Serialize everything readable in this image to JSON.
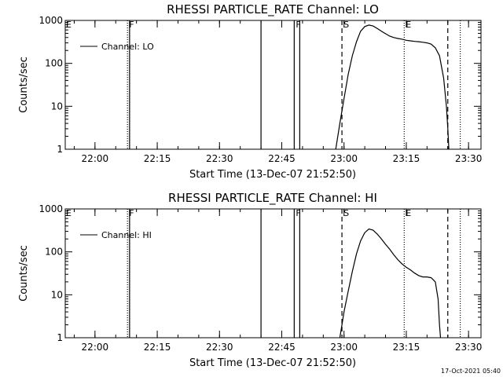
{
  "footer": {
    "timestamp": "17-Oct-2021 05:40"
  },
  "chart_data": [
    {
      "type": "line",
      "title": "RHESSI PARTICLE_RATE Channel: LO",
      "xlabel": "Start Time (13-Dec-07 21:52:50)",
      "ylabel": "Counts/sec",
      "y_scale": "log",
      "ylim": [
        1,
        1000
      ],
      "xlim": [
        "21:52:50",
        "23:33:00"
      ],
      "x_ticks": [
        "22:00",
        "22:15",
        "22:30",
        "22:45",
        "23:00",
        "23:15",
        "23:30"
      ],
      "y_ticks": [
        "1",
        "10",
        "100",
        "1000"
      ],
      "grid": false,
      "legend_position": "top-left",
      "series": [
        {
          "name": "Channel: LO",
          "x": [
            "22:58:00",
            "22:59:00",
            "23:00:00",
            "23:01:00",
            "23:02:00",
            "23:03:00",
            "23:04:00",
            "23:05:00",
            "23:06:00",
            "23:07:00",
            "23:08:00",
            "23:09:00",
            "23:10:00",
            "23:11:00",
            "23:12:00",
            "23:13:00",
            "23:14:00",
            "23:15:00",
            "23:16:00",
            "23:17:00",
            "23:18:00",
            "23:19:00",
            "23:20:00",
            "23:21:00",
            "23:22:00",
            "23:23:00",
            "23:24:00",
            "23:24:40",
            "23:25:00",
            "23:25:15"
          ],
          "y": [
            1,
            4,
            15,
            55,
            150,
            320,
            560,
            720,
            780,
            740,
            650,
            560,
            490,
            430,
            400,
            380,
            365,
            345,
            335,
            325,
            320,
            310,
            300,
            280,
            230,
            150,
            45,
            10,
            3,
            1
          ]
        }
      ],
      "vertical_markers": [
        {
          "time": "22:07:50",
          "style": "dotted",
          "label": "F"
        },
        {
          "time": "22:08:20",
          "style": "solid",
          "label": ""
        },
        {
          "time": "22:40:00",
          "style": "solid",
          "label": ""
        },
        {
          "time": "22:48:00",
          "style": "solid",
          "label": "F"
        },
        {
          "time": "22:49:20",
          "style": "solid",
          "label": ""
        },
        {
          "time": "22:59:30",
          "style": "dashed",
          "label": "S"
        },
        {
          "time": "23:14:30",
          "style": "dotted",
          "label": "E"
        },
        {
          "time": "23:25:00",
          "style": "dashed",
          "label": ""
        },
        {
          "time": "23:28:00",
          "style": "dotted",
          "label": ""
        }
      ],
      "left_edge_marker_label": "E"
    },
    {
      "type": "line",
      "title": "RHESSI PARTICLE_RATE Channel: HI",
      "xlabel": "Start Time (13-Dec-07 21:52:50)",
      "ylabel": "Counts/sec",
      "y_scale": "log",
      "ylim": [
        1,
        1000
      ],
      "xlim": [
        "21:52:50",
        "23:33:00"
      ],
      "x_ticks": [
        "22:00",
        "22:15",
        "22:30",
        "22:45",
        "23:00",
        "23:15",
        "23:30"
      ],
      "y_ticks": [
        "1",
        "10",
        "100",
        "1000"
      ],
      "grid": false,
      "legend_position": "top-left",
      "series": [
        {
          "name": "Channel: HI",
          "x": [
            "22:59:00",
            "22:59:30",
            "23:00:00",
            "23:01:00",
            "23:02:00",
            "23:03:00",
            "23:04:00",
            "23:05:00",
            "23:06:00",
            "23:07:00",
            "23:08:00",
            "23:09:00",
            "23:10:00",
            "23:11:00",
            "23:12:00",
            "23:13:00",
            "23:14:00",
            "23:15:00",
            "23:16:00",
            "23:17:00",
            "23:18:00",
            "23:19:00",
            "23:20:00",
            "23:21:00",
            "23:22:00",
            "23:22:40",
            "23:23:00",
            "23:23:15"
          ],
          "y": [
            1,
            2,
            4,
            12,
            35,
            90,
            180,
            280,
            340,
            320,
            260,
            200,
            150,
            115,
            85,
            65,
            52,
            44,
            38,
            32,
            28,
            26,
            26,
            25,
            20,
            8,
            2,
            1
          ]
        }
      ],
      "vertical_markers": [
        {
          "time": "22:07:50",
          "style": "dotted",
          "label": "F"
        },
        {
          "time": "22:08:20",
          "style": "solid",
          "label": ""
        },
        {
          "time": "22:40:00",
          "style": "solid",
          "label": ""
        },
        {
          "time": "22:48:00",
          "style": "solid",
          "label": "F"
        },
        {
          "time": "22:49:20",
          "style": "solid",
          "label": ""
        },
        {
          "time": "22:59:30",
          "style": "dashed",
          "label": "S"
        },
        {
          "time": "23:14:30",
          "style": "dotted",
          "label": "E"
        },
        {
          "time": "23:25:00",
          "style": "dashed",
          "label": ""
        },
        {
          "time": "23:28:00",
          "style": "dotted",
          "label": ""
        }
      ],
      "left_edge_marker_label": "E"
    }
  ]
}
